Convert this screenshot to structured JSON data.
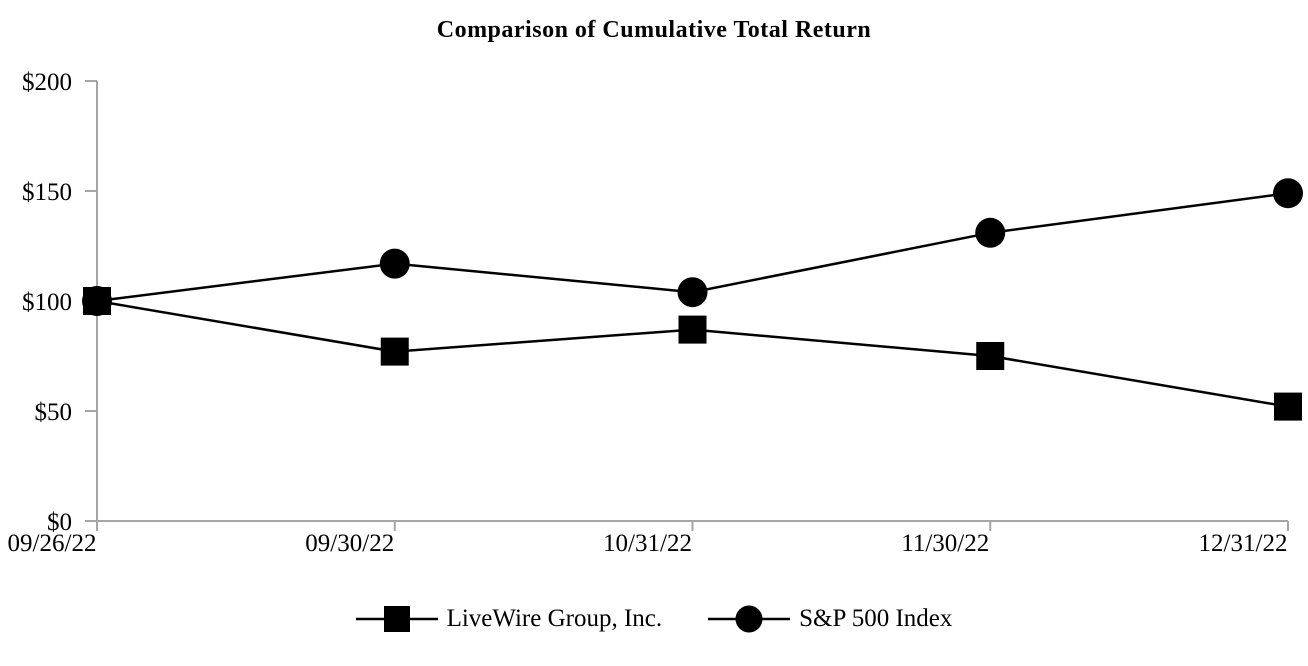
{
  "chart_data": {
    "type": "line",
    "title": "Comparison of Cumulative Total Return",
    "categories": [
      "09/26/22",
      "09/30/22",
      "10/31/22",
      "11/30/22",
      "12/31/22"
    ],
    "series": [
      {
        "name": "LiveWire Group, Inc.",
        "marker": "square",
        "color": "#000000",
        "values": [
          100,
          77,
          87,
          75,
          52
        ]
      },
      {
        "name": "S&P 500 Index",
        "marker": "circle",
        "color": "#000000",
        "values": [
          100,
          117,
          104,
          131,
          149
        ]
      }
    ],
    "yticks": [
      {
        "value": 0,
        "label": "$0"
      },
      {
        "value": 50,
        "label": "$50"
      },
      {
        "value": 100,
        "label": "$100"
      },
      {
        "value": 150,
        "label": "$150"
      },
      {
        "value": 200,
        "label": "$200"
      }
    ],
    "ylim": [
      0,
      200
    ],
    "xlabel": "",
    "ylabel": "",
    "grid": false,
    "legend_position": "bottom",
    "axis_color": "#a6a6a6",
    "line_color": "#000000",
    "background": "#ffffff",
    "text_color": "#000000"
  },
  "legend": {
    "items": [
      {
        "label": "LiveWire Group, Inc.",
        "marker": "square"
      },
      {
        "label": "S&P 500 Index",
        "marker": "circle"
      }
    ]
  }
}
